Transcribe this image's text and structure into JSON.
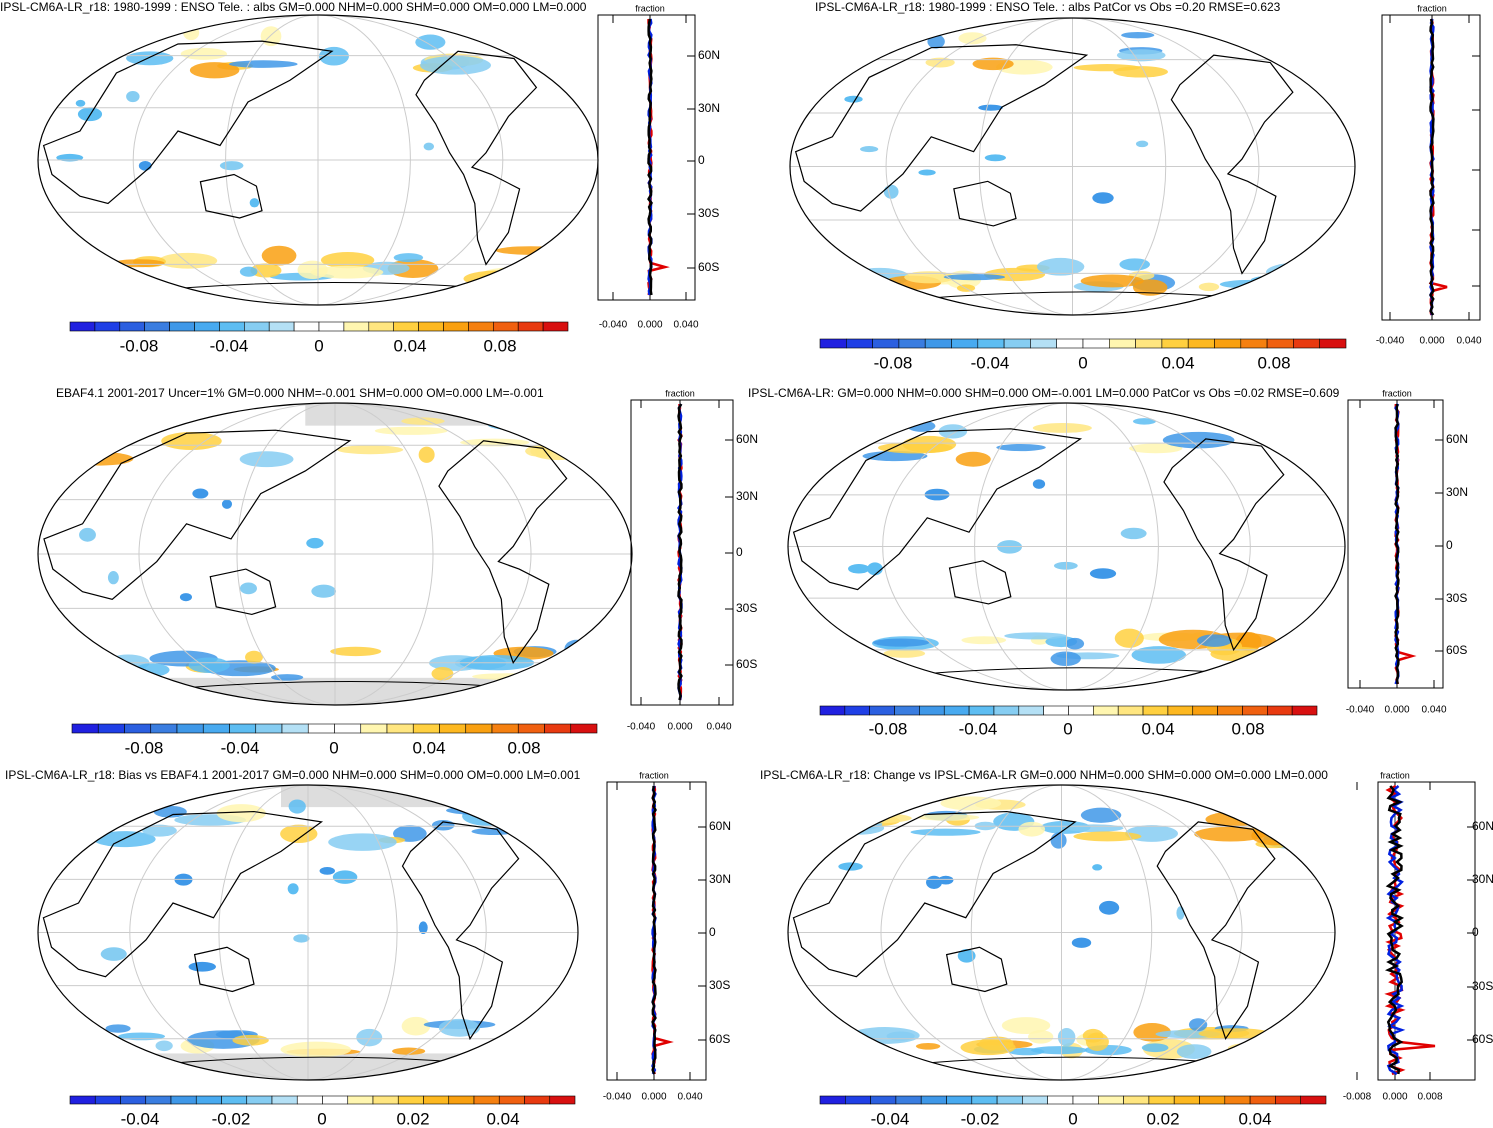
{
  "panels": [
    {
      "title": "IPSL-CM6A-LR_r18: 1980-1999 : ENSO Tele. : albs GM=0.000 NHM=0.000 SHM=0.000 OM=0.000 LM=0.000",
      "zonal": {
        "axis_label": "fraction",
        "xticks": [
          "-0.040",
          "0.000",
          "0.040"
        ],
        "yticks": [
          "60N",
          "30N",
          "0",
          "30S",
          "60S"
        ]
      },
      "colorbar": {
        "labels": [
          "-0.08",
          "-0.04",
          "0",
          "0.04",
          "0.08"
        ]
      }
    },
    {
      "title": "IPSL-CM6A-LR_r18: 1980-1999 : ENSO Tele. : albs PatCor vs Obs =0.20 RMSE=0.623",
      "zonal": {
        "axis_label": "fraction",
        "xticks": [
          "-0.040",
          "0.000",
          "0.040"
        ]
      },
      "colorbar": {
        "labels": [
          "-0.08",
          "-0.04",
          "0",
          "0.04",
          "0.08"
        ]
      }
    },
    {
      "title": "EBAF4.1 2001-2017 Uncer=1% GM=0.000 NHM=-0.001 SHM=0.000 OM=0.000 LM=-0.001",
      "zonal": {
        "axis_label": "fraction",
        "xticks": [
          "-0.040",
          "0.000",
          "0.040"
        ],
        "yticks": [
          "60N",
          "30N",
          "0",
          "30S",
          "60S"
        ]
      },
      "colorbar": {
        "labels": [
          "-0.08",
          "-0.04",
          "0",
          "0.04",
          "0.08"
        ]
      }
    },
    {
      "title": "IPSL-CM6A-LR: GM=0.000 NHM=0.000 SHM=0.000 OM=-0.001 LM=0.000 PatCor vs Obs =0.02 RMSE=0.609",
      "zonal": {
        "axis_label": "fraction",
        "xticks": [
          "-0.040",
          "0.000",
          "0.040"
        ],
        "yticks": [
          "60N",
          "30N",
          "0",
          "30S",
          "60S"
        ]
      },
      "colorbar": {
        "labels": [
          "-0.08",
          "-0.04",
          "0",
          "0.04",
          "0.08"
        ]
      }
    },
    {
      "title": "IPSL-CM6A-LR_r18: Bias vs EBAF4.1 2001-2017 GM=0.000 NHM=0.000 SHM=0.000 OM=0.000 LM=0.001",
      "zonal": {
        "axis_label": "fraction",
        "xticks": [
          "-0.040",
          "0.000",
          "0.040"
        ],
        "yticks": [
          "60N",
          "30N",
          "0",
          "30S",
          "60S"
        ]
      },
      "colorbar": {
        "labels": [
          "-0.04",
          "-0.02",
          "0",
          "0.02",
          "0.04"
        ]
      }
    },
    {
      "title": "IPSL-CM6A-LR_r18: Change vs IPSL-CM6A-LR GM=0.000 NHM=0.000 SHM=0.000 OM=0.000 LM=0.000",
      "zonal": {
        "axis_label": "fraction",
        "xticks": [
          "-0.008",
          "0.000",
          "0.008"
        ],
        "yticks": [
          "60N",
          "30N",
          "0",
          "30S",
          "60S"
        ]
      },
      "colorbar": {
        "labels": [
          "-0.04",
          "-0.02",
          "0",
          "0.02",
          "0.04"
        ]
      }
    }
  ]
}
